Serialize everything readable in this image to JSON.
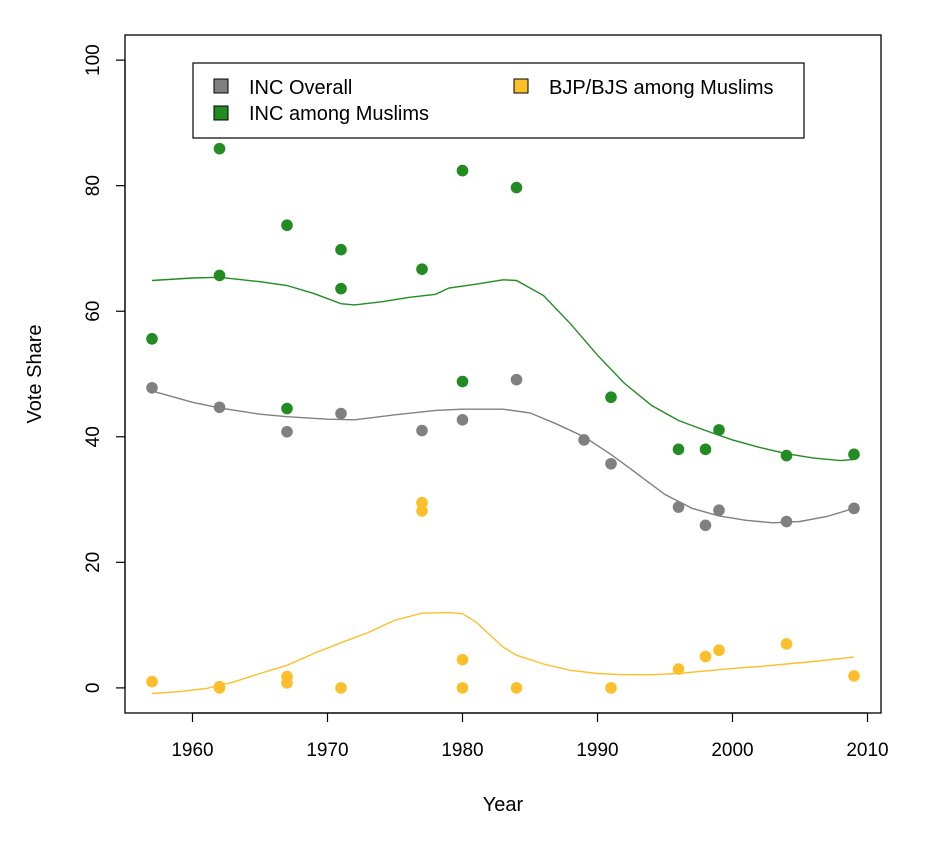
{
  "chart_data": {
    "type": "scatter",
    "title": "",
    "xlabel": "Year",
    "ylabel": "Vote Share",
    "xlim": [
      1955,
      2011
    ],
    "ylim": [
      -4,
      104
    ],
    "xticks": [
      1960,
      1970,
      1980,
      1990,
      2000,
      2010
    ],
    "yticks": [
      0,
      20,
      40,
      60,
      80,
      100
    ],
    "grid": false,
    "legend_position": "top",
    "series": [
      {
        "name": "INC Overall",
        "color": "#808080",
        "points": [
          [
            1957,
            47.8
          ],
          [
            1962,
            44.7
          ],
          [
            1967,
            40.8
          ],
          [
            1971,
            43.7
          ],
          [
            1977,
            41.0
          ],
          [
            1980,
            42.7
          ],
          [
            1984,
            49.1
          ],
          [
            1989,
            39.5
          ],
          [
            1991,
            35.7
          ],
          [
            1996,
            28.8
          ],
          [
            1998,
            25.9
          ],
          [
            1999,
            28.3
          ],
          [
            2004,
            26.5
          ],
          [
            2009,
            28.6
          ]
        ],
        "trend": [
          [
            1957,
            47.3
          ],
          [
            1960,
            45.5
          ],
          [
            1962,
            44.6
          ],
          [
            1965,
            43.6
          ],
          [
            1967,
            43.2
          ],
          [
            1970,
            42.8
          ],
          [
            1972,
            42.7
          ],
          [
            1975,
            43.5
          ],
          [
            1978,
            44.2
          ],
          [
            1980,
            44.4
          ],
          [
            1983,
            44.4
          ],
          [
            1985,
            43.8
          ],
          [
            1987,
            42.0
          ],
          [
            1989,
            40.0
          ],
          [
            1991,
            37.2
          ],
          [
            1993,
            34.0
          ],
          [
            1995,
            30.8
          ],
          [
            1997,
            28.6
          ],
          [
            1999,
            27.4
          ],
          [
            2001,
            26.7
          ],
          [
            2003,
            26.3
          ],
          [
            2005,
            26.5
          ],
          [
            2007,
            27.3
          ],
          [
            2009,
            28.6
          ]
        ]
      },
      {
        "name": "INC among Muslims",
        "color": "#228b22",
        "points": [
          [
            1957,
            55.6
          ],
          [
            1962,
            85.9
          ],
          [
            1962,
            65.7
          ],
          [
            1967,
            73.7
          ],
          [
            1967,
            44.5
          ],
          [
            1971,
            69.8
          ],
          [
            1971,
            63.6
          ],
          [
            1977,
            66.7
          ],
          [
            1980,
            82.4
          ],
          [
            1980,
            48.8
          ],
          [
            1984,
            79.7
          ],
          [
            1991,
            46.3
          ],
          [
            1996,
            38.0
          ],
          [
            1998,
            38.0
          ],
          [
            1999,
            41.1
          ],
          [
            2004,
            37.0
          ],
          [
            2009,
            37.2
          ]
        ],
        "trend": [
          [
            1957,
            64.9
          ],
          [
            1960,
            65.3
          ],
          [
            1962,
            65.4
          ],
          [
            1965,
            64.7
          ],
          [
            1967,
            64.1
          ],
          [
            1969,
            62.8
          ],
          [
            1971,
            61.2
          ],
          [
            1972,
            61.0
          ],
          [
            1974,
            61.5
          ],
          [
            1976,
            62.2
          ],
          [
            1978,
            62.7
          ],
          [
            1979,
            63.7
          ],
          [
            1981,
            64.3
          ],
          [
            1983,
            65.0
          ],
          [
            1984,
            64.9
          ],
          [
            1986,
            62.5
          ],
          [
            1988,
            58.0
          ],
          [
            1990,
            53.0
          ],
          [
            1992,
            48.5
          ],
          [
            1994,
            45.0
          ],
          [
            1996,
            42.6
          ],
          [
            1998,
            41.0
          ],
          [
            2000,
            39.5
          ],
          [
            2002,
            38.3
          ],
          [
            2004,
            37.3
          ],
          [
            2006,
            36.6
          ],
          [
            2008,
            36.2
          ],
          [
            2009,
            36.4
          ]
        ]
      },
      {
        "name": "BJP/BJS among Muslims",
        "color": "#fcbf2c",
        "points": [
          [
            1957,
            1.0
          ],
          [
            1962,
            0.0
          ],
          [
            1962,
            0.2
          ],
          [
            1967,
            1.8
          ],
          [
            1967,
            0.8
          ],
          [
            1971,
            0.0
          ],
          [
            1977,
            29.5
          ],
          [
            1977,
            28.2
          ],
          [
            1980,
            4.5
          ],
          [
            1980,
            0.0
          ],
          [
            1984,
            0.0
          ],
          [
            1991,
            0.0
          ],
          [
            1996,
            3.0
          ],
          [
            1998,
            5.0
          ],
          [
            1999,
            6.0
          ],
          [
            2004,
            7.0
          ],
          [
            2009,
            1.9
          ]
        ],
        "trend": [
          [
            1957,
            -0.9
          ],
          [
            1959,
            -0.6
          ],
          [
            1961,
            -0.1
          ],
          [
            1963,
            0.9
          ],
          [
            1965,
            2.3
          ],
          [
            1967,
            3.6
          ],
          [
            1969,
            5.5
          ],
          [
            1971,
            7.2
          ],
          [
            1973,
            8.8
          ],
          [
            1975,
            10.8
          ],
          [
            1977,
            11.9
          ],
          [
            1979,
            12.0
          ],
          [
            1980,
            11.8
          ],
          [
            1981,
            10.5
          ],
          [
            1982,
            8.5
          ],
          [
            1983,
            6.5
          ],
          [
            1984,
            5.2
          ],
          [
            1986,
            3.8
          ],
          [
            1988,
            2.8
          ],
          [
            1990,
            2.3
          ],
          [
            1992,
            2.1
          ],
          [
            1994,
            2.1
          ],
          [
            1996,
            2.3
          ],
          [
            1998,
            2.7
          ],
          [
            2000,
            3.1
          ],
          [
            2002,
            3.4
          ],
          [
            2004,
            3.8
          ],
          [
            2006,
            4.2
          ],
          [
            2009,
            4.9
          ]
        ]
      }
    ]
  }
}
